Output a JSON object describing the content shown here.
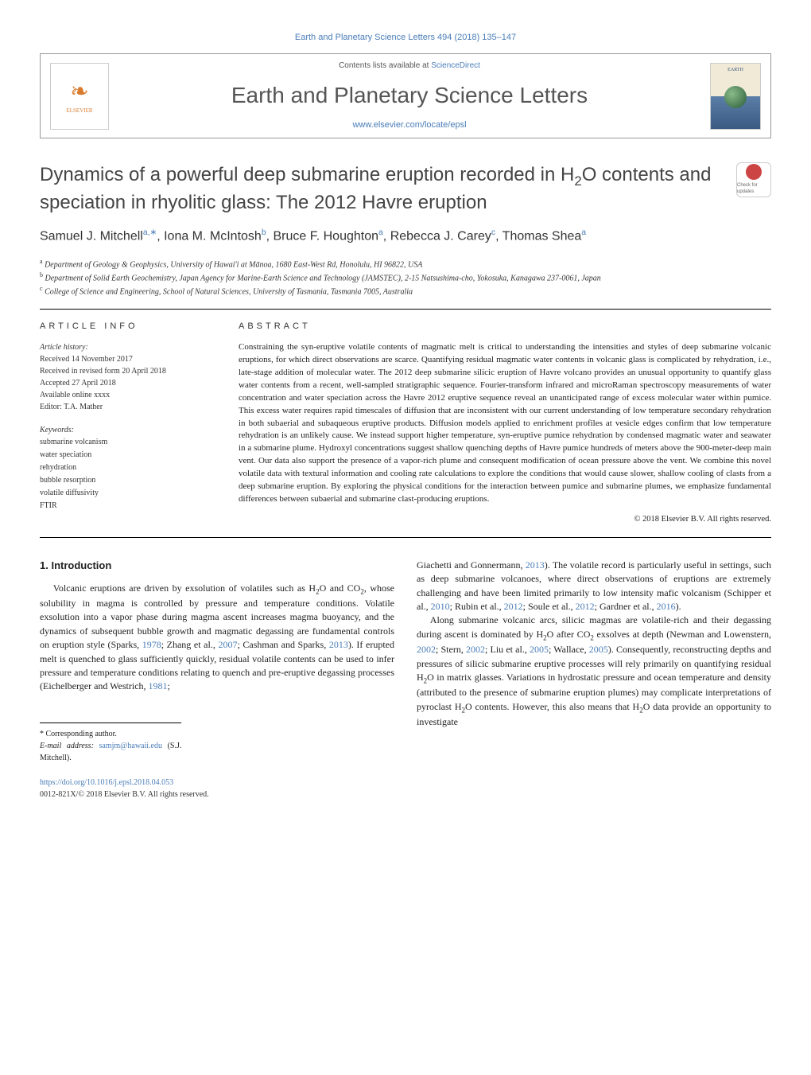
{
  "running_header": "Earth and Planetary Science Letters 494 (2018) 135–147",
  "masthead": {
    "publisher": "ELSEVIER",
    "contents_prefix": "Contents lists available at ",
    "contents_link": "ScienceDirect",
    "journal_name": "Earth and Planetary Science Letters",
    "journal_url": "www.elsevier.com/locate/epsl",
    "cover_text": "EARTH"
  },
  "crossmark": "Check for updates",
  "title": {
    "line1": "Dynamics of a powerful deep submarine eruption recorded in H",
    "sub1": "2",
    "line2": "O contents and speciation in rhyolitic glass: The 2012 Havre eruption"
  },
  "authors_html": "Samuel J. Mitchell<sup>a,∗</sup>, Iona M. McIntosh<sup>b</sup>, Bruce F. Houghton<sup>a</sup>, Rebecca J. Carey<sup>c</sup>, Thomas Shea<sup>a</sup>",
  "affiliations": [
    {
      "sup": "a",
      "text": "Department of Geology & Geophysics, University of Hawai'i at Mānoa, 1680 East-West Rd, Honolulu, HI 96822, USA"
    },
    {
      "sup": "b",
      "text": "Department of Solid Earth Geochemistry, Japan Agency for Marine-Earth Science and Technology (JAMSTEC), 2-15 Natsushima-cho, Yokosuka, Kanagawa 237-0061, Japan"
    },
    {
      "sup": "c",
      "text": "College of Science and Engineering, School of Natural Sciences, University of Tasmania, Tasmania 7005, Australia"
    }
  ],
  "article_info": {
    "label": "ARTICLE INFO",
    "history_label": "Article history:",
    "history": [
      "Received 14 November 2017",
      "Received in revised form 20 April 2018",
      "Accepted 27 April 2018",
      "Available online xxxx",
      "Editor: T.A. Mather"
    ],
    "keywords_label": "Keywords:",
    "keywords": [
      "submarine volcanism",
      "water speciation",
      "rehydration",
      "bubble resorption",
      "volatile diffusivity",
      "FTIR"
    ]
  },
  "abstract": {
    "label": "ABSTRACT",
    "text": "Constraining the syn-eruptive volatile contents of magmatic melt is critical to understanding the intensities and styles of deep submarine volcanic eruptions, for which direct observations are scarce. Quantifying residual magmatic water contents in volcanic glass is complicated by rehydration, i.e., late-stage addition of molecular water. The 2012 deep submarine silicic eruption of Havre volcano provides an unusual opportunity to quantify glass water contents from a recent, well-sampled stratigraphic sequence. Fourier-transform infrared and microRaman spectroscopy measurements of water concentration and water speciation across the Havre 2012 eruptive sequence reveal an unanticipated range of excess molecular water within pumice. This excess water requires rapid timescales of diffusion that are inconsistent with our current understanding of low temperature secondary rehydration in both subaerial and subaqueous eruptive products. Diffusion models applied to enrichment profiles at vesicle edges confirm that low temperature rehydration is an unlikely cause. We instead support higher temperature, syn-eruptive pumice rehydration by condensed magmatic water and seawater in a submarine plume. Hydroxyl concentrations suggest shallow quenching depths of Havre pumice hundreds of meters above the 900-meter-deep main vent. Our data also support the presence of a vapor-rich plume and consequent modification of ocean pressure above the vent. We combine this novel volatile data with textural information and cooling rate calculations to explore the conditions that would cause slower, shallow cooling of clasts from a deep submarine eruption. By exploring the physical conditions for the interaction between pumice and submarine plumes, we emphasize fundamental differences between subaerial and submarine clast-producing eruptions.",
    "copyright": "© 2018 Elsevier B.V. All rights reserved."
  },
  "body": {
    "section_heading": "1. Introduction",
    "p1_a": "Volcanic eruptions are driven by exsolution of volatiles such as H",
    "p1_sub1": "2",
    "p1_b": "O and CO",
    "p1_sub2": "2",
    "p1_c": ", whose solubility in magma is controlled by pressure and temperature conditions. Volatile exsolution into a vapor phase during magma ascent increases magma buoyancy, and the dynamics of subsequent bubble growth and magmatic degassing are fundamental controls on eruption style (Sparks, ",
    "p1_link1": "1978",
    "p1_d": "; Zhang et al., ",
    "p1_link2": "2007",
    "p1_e": "; Cashman and Sparks, ",
    "p1_link3": "2013",
    "p1_f": "). If erupted melt is quenched to glass sufficiently quickly, residual volatile contents can be used to infer pressure and temperature conditions relating to quench and pre-eruptive degassing processes (Eichelberger and Westrich, ",
    "p1_link4": "1981",
    "p1_g": "; ",
    "p2_a": "Giachetti and Gonnermann, ",
    "p2_link1": "2013",
    "p2_b": "). The volatile record is particularly useful in settings, such as deep submarine volcanoes, where direct observations of eruptions are extremely challenging and have been limited primarily to low intensity mafic volcanism (Schipper et al., ",
    "p2_link2": "2010",
    "p2_c": "; Rubin et al., ",
    "p2_link3": "2012",
    "p2_d": "; Soule et al., ",
    "p2_link4": "2012",
    "p2_e": "; Gardner et al., ",
    "p2_link5": "2016",
    "p2_f": ").",
    "p3_a": "Along submarine volcanic arcs, silicic magmas are volatile-rich and their degassing during ascent is dominated by H",
    "p3_sub1": "2",
    "p3_b": "O after CO",
    "p3_sub2": "2",
    "p3_c": " exsolves at depth (Newman and Lowenstern, ",
    "p3_link1": "2002",
    "p3_d": "; Stern, ",
    "p3_link2": "2002",
    "p3_e": "; Liu et al., ",
    "p3_link3": "2005",
    "p3_f": "; Wallace, ",
    "p3_link4": "2005",
    "p3_g": "). Consequently, reconstructing depths and pressures of silicic submarine eruptive processes will rely primarily on quantifying residual H",
    "p3_sub3": "2",
    "p3_h": "O in matrix glasses. Variations in hydrostatic pressure and ocean temperature and density (attributed to the presence of submarine eruption plumes) may complicate interpretations of pyroclast H",
    "p3_sub4": "2",
    "p3_i": "O contents. However, this also means that H",
    "p3_sub5": "2",
    "p3_j": "O data provide an opportunity to investigate"
  },
  "footnotes": {
    "corr": "* Corresponding author.",
    "email_label": "E-mail address: ",
    "email": "samjm@hawaii.edu",
    "email_suffix": " (S.J. Mitchell)."
  },
  "footer": {
    "doi": "https://doi.org/10.1016/j.epsl.2018.04.053",
    "issn_line": "0012-821X/© 2018 Elsevier B.V. All rights reserved."
  },
  "colors": {
    "link": "#4a7db8",
    "text": "#222222",
    "heading": "#444444",
    "logo_orange": "#d97b2e"
  }
}
